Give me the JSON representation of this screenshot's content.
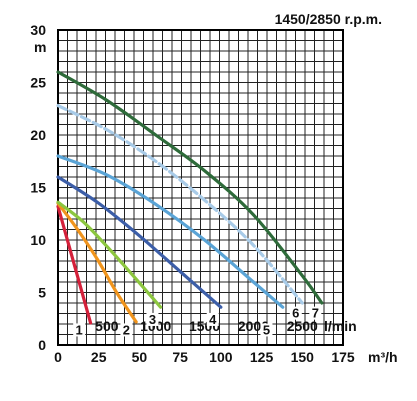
{
  "chart_data": {
    "type": "line",
    "title": "1450/2850 r.p.m.",
    "ylabel": "m",
    "xlabel_flow": "l/min",
    "xlabel_m3h": "m³/h",
    "ylim": [
      0,
      30
    ],
    "xlim_m3h": [
      0,
      175
    ],
    "yticks": [
      0,
      5,
      10,
      15,
      20,
      25,
      30
    ],
    "y_tick_labels": [
      "0",
      "5",
      "10",
      "15",
      "20",
      "25",
      "30"
    ],
    "x_m3h_ticks": [
      0,
      25,
      50,
      75,
      100,
      125,
      150,
      175
    ],
    "x_m3h_tick_labels": [
      "0",
      "25",
      "50",
      "75",
      "100",
      "125",
      "150",
      "175"
    ],
    "x_lmin_ticks": [
      500,
      1000,
      1500,
      2000,
      2500
    ],
    "x_lmin_tick_labels": [
      "500",
      "1000",
      "1500",
      "2000",
      "2500"
    ],
    "grid": true,
    "series": [
      {
        "name": "1",
        "color": "#d4203a",
        "x": [
          0,
          20
        ],
        "y": [
          13.2,
          2.1
        ]
      },
      {
        "name": "2",
        "color": "#f0941c",
        "x": [
          0,
          12,
          24,
          36,
          48
        ],
        "y": [
          13.5,
          11.0,
          8.2,
          5.0,
          2.2
        ]
      },
      {
        "name": "3",
        "color": "#8cc63f",
        "x": [
          0,
          15,
          30,
          45,
          63
        ],
        "y": [
          13.6,
          11.8,
          9.4,
          6.8,
          3.6
        ]
      },
      {
        "name": "4",
        "color": "#3c5ea8",
        "x": [
          0,
          25,
          50,
          75,
          100
        ],
        "y": [
          16.0,
          13.5,
          10.4,
          7.0,
          3.6
        ]
      },
      {
        "name": "5",
        "color": "#5aa4d6",
        "x": [
          0,
          30,
          60,
          90,
          120,
          138
        ],
        "y": [
          18.0,
          16.2,
          13.4,
          10.0,
          6.0,
          3.6
        ]
      },
      {
        "name": "6",
        "color": "#a8cbe8",
        "x": [
          0,
          30,
          60,
          90,
          120,
          150
        ],
        "y": [
          22.8,
          20.5,
          17.5,
          13.8,
          9.5,
          4.0
        ]
      },
      {
        "name": "7",
        "color": "#2e6b3a",
        "x": [
          0,
          30,
          60,
          90,
          120,
          150,
          162
        ],
        "y": [
          26.0,
          23.3,
          20.0,
          16.6,
          12.4,
          6.6,
          4.0
        ]
      }
    ],
    "curve_labels": [
      {
        "text": "1",
        "x": 13,
        "y": 1.1
      },
      {
        "text": "2",
        "x": 42,
        "y": 1.1
      },
      {
        "text": "3",
        "x": 58,
        "y": 2.1
      },
      {
        "text": "4",
        "x": 95,
        "y": 2.1
      },
      {
        "text": "5",
        "x": 128,
        "y": 1.1
      },
      {
        "text": "6",
        "x": 146,
        "y": 2.7
      },
      {
        "text": "7",
        "x": 158,
        "y": 2.7
      }
    ]
  }
}
